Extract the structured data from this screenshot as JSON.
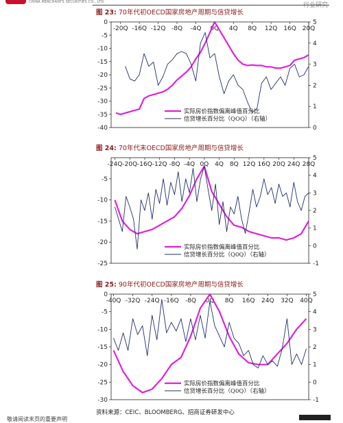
{
  "page": {
    "brand_text": "CHINA MERCHANTS SECURITIES CO., LTD.",
    "header_right": "行业研究",
    "source": "资料来源：CEIC、BLOOMBERG、招商证券研发中心",
    "footer_text": "敬请阅读末页的重要声明"
  },
  "colors": {
    "price_series": "#e020d8",
    "credit_series": "#1f2d6b",
    "title": "#8b1a1a"
  },
  "chart_data": [
    {
      "type": "line",
      "fig_num": "图 23:",
      "title": "70年代初OECD国家房地产周期与信贷增长",
      "x_ticks": [
        "-20Q",
        "-16Q",
        "-12Q",
        "-8Q",
        "-4Q",
        "0Q",
        "4Q",
        "8Q",
        "12Q",
        "16Q",
        "20Q"
      ],
      "xlim": [
        -22,
        20
      ],
      "ylim_left": [
        -40,
        0
      ],
      "y_ticks_left": [
        "0",
        "-5",
        "-10",
        "-15",
        "-20",
        "-25",
        "-30",
        "-35",
        "-40"
      ],
      "ylim_right": [
        0,
        5
      ],
      "y_ticks_right": [
        "5",
        "4",
        "3",
        "2",
        "1",
        "0"
      ],
      "series": [
        {
          "name": "实际房价指数偏离峰值百分比",
          "axis": "left",
          "x": [
            -21,
            -20,
            -19,
            -18,
            -17,
            -16,
            -15,
            -14,
            -13,
            -12,
            -11,
            -10,
            -9,
            -8,
            -7,
            -6,
            -5,
            -4,
            -3,
            -2,
            -1,
            0,
            1,
            2,
            3,
            4,
            5,
            6,
            7,
            8,
            9,
            10,
            11,
            12,
            13,
            14,
            15,
            16,
            17,
            18,
            19,
            20
          ],
          "y": [
            -34.5,
            -35,
            -34.5,
            -34,
            -33.5,
            -33,
            -29,
            -28,
            -27.5,
            -27,
            -26.5,
            -25.5,
            -24,
            -22,
            -20.5,
            -19,
            -17,
            -14,
            -11.5,
            -8,
            -4,
            0,
            -3,
            -6,
            -9,
            -12,
            -14.5,
            -16,
            -16.5,
            -16.3,
            -16.5,
            -16.5,
            -17,
            -17,
            -17.5,
            -17.5,
            -17,
            -16.5,
            -14.5,
            -14,
            -13.5,
            -12.5
          ]
        },
        {
          "name": "信贷增长百分比（QOQ）（右轴）",
          "axis": "right",
          "x": [
            -19,
            -18,
            -17,
            -16,
            -15,
            -14,
            -13,
            -12,
            -11,
            -10,
            -9,
            -8,
            -7,
            -6,
            -5,
            -4,
            -3,
            -2,
            -1,
            0,
            1,
            2,
            3,
            4,
            5,
            6,
            7,
            8,
            9,
            10,
            11,
            12,
            13,
            14,
            15,
            16,
            17,
            18,
            19,
            20
          ],
          "y": [
            2.9,
            2.3,
            2.2,
            2.5,
            3.5,
            2.9,
            3.1,
            2.0,
            2.4,
            3.0,
            3.2,
            3.5,
            3.6,
            3.5,
            3.0,
            2.2,
            4.0,
            4.5,
            3.3,
            3.5,
            2.4,
            1.6,
            2.2,
            2.5,
            2.0,
            1.8,
            1.2,
            0.7,
            0.9,
            2.1,
            2.4,
            1.8,
            2.1,
            2.4,
            2.0,
            2.8,
            3.0,
            2.4,
            2.5,
            2.9
          ]
        }
      ]
    },
    {
      "type": "line",
      "fig_num": "图 24:",
      "title": "70年代末OECD国家房地产周期与信贷增长",
      "x_ticks": [
        "-24Q",
        "-20Q",
        "-16Q",
        "-12Q",
        "-8Q",
        "-4Q",
        "0Q",
        "4Q",
        "8Q",
        "12Q",
        "16Q",
        "20Q",
        "24Q",
        "28Q"
      ],
      "xlim": [
        -25,
        28
      ],
      "ylim_left": [
        -25,
        0
      ],
      "y_ticks_left": [
        "-5",
        "-10",
        "-15",
        "-20",
        "-25"
      ],
      "ylim_right": [
        -1,
        5
      ],
      "y_ticks_right": [
        "5",
        "4",
        "3",
        "2",
        "1",
        "0",
        "-1"
      ],
      "series": [
        {
          "name": "实际房价指数偏离峰值百分比",
          "axis": "left",
          "x": [
            -24,
            -22,
            -20,
            -18,
            -16,
            -14,
            -12,
            -10,
            -8,
            -6,
            -4,
            -2,
            0,
            2,
            4,
            6,
            8,
            10,
            12,
            14,
            16,
            18,
            20,
            22,
            24,
            26,
            28
          ],
          "y": [
            -10,
            -15,
            -17,
            -18,
            -17.5,
            -17,
            -16,
            -15,
            -14,
            -12,
            -9,
            -5,
            -2,
            -8,
            -11,
            -14,
            -16,
            -16.5,
            -17.5,
            -18,
            -18.5,
            -19,
            -19,
            -19.5,
            -19,
            -18,
            -15
          ]
        },
        {
          "name": "信贷增长百分比（Q0Q）（右轴）",
          "axis": "right",
          "x": [
            -24,
            -23,
            -22,
            -21,
            -20,
            -19,
            -18,
            -17,
            -16,
            -15,
            -14,
            -13,
            -12,
            -11,
            -10,
            -9,
            -8,
            -7,
            -6,
            -5,
            -4,
            -3,
            -2,
            -1,
            0,
            1,
            2,
            3,
            4,
            5,
            6,
            7,
            8,
            9,
            10,
            11,
            12,
            13,
            14,
            15,
            16,
            17,
            18,
            19,
            20,
            21,
            22,
            23,
            24,
            25,
            26,
            27,
            28
          ],
          "y": [
            2.2,
            1.5,
            0.8,
            2.8,
            2.2,
            1.5,
            -0.2,
            2.6,
            2.0,
            3.0,
            1.5,
            3.2,
            2.4,
            3.8,
            2.3,
            3.6,
            2.9,
            4.2,
            2.5,
            3.8,
            3.0,
            4.4,
            2.5,
            3.8,
            4.5,
            3.2,
            2.0,
            3.5,
            1.2,
            2.5,
            0.8,
            2.2,
            1.8,
            2.8,
            1.5,
            0.7,
            1.9,
            3.2,
            2.2,
            2.8,
            3.8,
            2.9,
            3.3,
            2.4,
            3.5,
            2.8,
            3.0,
            2.2,
            3.6,
            2.5,
            2.0,
            2.8,
            3.0
          ]
        }
      ]
    },
    {
      "type": "line",
      "fig_num": "图 25:",
      "title": "90年代初OECD国家房地产周期与信贷增长",
      "x_ticks": [
        "-40Q",
        "-32Q",
        "-24Q",
        "-16Q",
        "-8Q",
        "0Q",
        "8Q",
        "16Q",
        "24Q",
        "32Q",
        "40Q"
      ],
      "xlim": [
        -41,
        41
      ],
      "ylim_left": [
        -30,
        0
      ],
      "y_ticks_left": [
        "0",
        "-5",
        "-10",
        "-15",
        "-20",
        "-25",
        "-30"
      ],
      "ylim_right": [
        -1,
        5
      ],
      "y_ticks_right": [
        "5",
        "4",
        "3",
        "2",
        "1",
        "0",
        "-1"
      ],
      "series": [
        {
          "name": "实际房价指数偏离峰值百分比",
          "axis": "left",
          "x": [
            -40,
            -36,
            -32,
            -28,
            -24,
            -20,
            -16,
            -12,
            -8,
            -4,
            0,
            4,
            8,
            12,
            16,
            20,
            24,
            28,
            32,
            36,
            40
          ],
          "y": [
            -16,
            -22,
            -26,
            -28,
            -27,
            -24,
            -20,
            -18,
            -12,
            -4,
            0,
            -5,
            -12,
            -17,
            -19.5,
            -20,
            -20,
            -17,
            -14,
            -10,
            -7
          ]
        },
        {
          "name": "信贷增长百分比（Q0Q）（右轴）",
          "axis": "right",
          "x": [
            -40,
            -38,
            -36,
            -34,
            -32,
            -30,
            -28,
            -26,
            -24,
            -22,
            -20,
            -18,
            -16,
            -14,
            -12,
            -10,
            -8,
            -6,
            -4,
            -2,
            0,
            2,
            4,
            6,
            8,
            10,
            12,
            14,
            16,
            18,
            20,
            22,
            24,
            26,
            28,
            30,
            32,
            34,
            36,
            38,
            40
          ],
          "y": [
            2.5,
            1.8,
            2.8,
            1.8,
            3.6,
            2.7,
            3.2,
            1.5,
            3.8,
            2.4,
            4.7,
            2.8,
            3.4,
            2.9,
            3.6,
            2.3,
            3.6,
            2.4,
            3.8,
            2.5,
            4.6,
            3.2,
            2.6,
            2.0,
            3.4,
            2.5,
            2.2,
            1.5,
            1.8,
            1.0,
            0.8,
            1.5,
            1.0,
            1.2,
            0.9,
            1.9,
            3.6,
            1.0,
            1.6,
            1.0,
            1.9
          ]
        }
      ]
    }
  ]
}
